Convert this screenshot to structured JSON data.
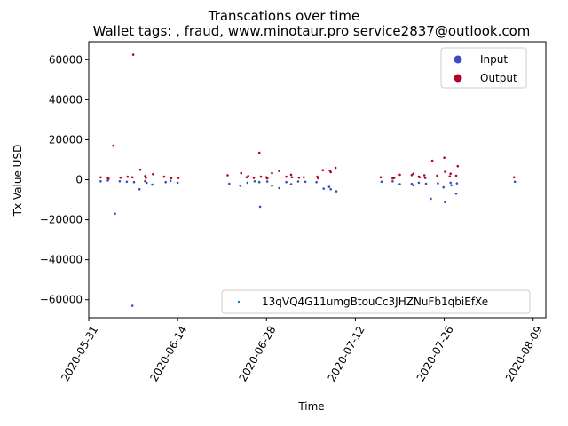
{
  "chart_data": {
    "type": "scatter",
    "title": "Transcations over time",
    "subtitle": "Wallet tags: , fraud, www.minotaur.pro service2837@outlook.com",
    "xlabel": "Time",
    "ylabel": "Tx Value USD",
    "x_ticks": [
      "2020-05-31",
      "2020-06-14",
      "2020-06-28",
      "2020-07-12",
      "2020-07-26",
      "2020-08-09"
    ],
    "y_ticks": [
      -60000,
      -40000,
      -20000,
      0,
      20000,
      40000,
      60000
    ],
    "y_tick_labels": [
      "−60000",
      "−40000",
      "−20000",
      "0",
      "20000",
      "40000",
      "60000"
    ],
    "xlim": [
      "2020-05-31",
      "2020-08-10"
    ],
    "ylim": [
      -69000,
      69000
    ],
    "grid": false,
    "legend_top": {
      "placement": "top-right",
      "entries": [
        {
          "label": "Input",
          "color": "#3b4cc0"
        },
        {
          "label": "Output",
          "color": "#b40426"
        }
      ]
    },
    "legend_bottom": {
      "placement": "bottom-right",
      "entries": [
        {
          "label": "13qVQ4G11umgBtouCc3JHZNuFb1qbiEfXe",
          "color": "#1f77b4"
        }
      ]
    },
    "series": [
      {
        "name": "Output",
        "color": "#b40426",
        "points": [
          [
            "2020-06-02",
            1200
          ],
          [
            "2020-06-03",
            900
          ],
          [
            "2020-06-03",
            500
          ],
          [
            "2020-06-04",
            17000
          ],
          [
            "2020-06-05",
            1000
          ],
          [
            "2020-06-06",
            1500
          ],
          [
            "2020-06-07",
            1200
          ],
          [
            "2020-06-07",
            62500
          ],
          [
            "2020-06-08",
            5000
          ],
          [
            "2020-06-09",
            1800
          ],
          [
            "2020-06-09",
            900
          ],
          [
            "2020-06-10",
            2800
          ],
          [
            "2020-06-12",
            1500
          ],
          [
            "2020-06-13",
            700
          ],
          [
            "2020-06-14",
            900
          ],
          [
            "2020-06-22",
            2200
          ],
          [
            "2020-06-24",
            3300
          ],
          [
            "2020-06-25",
            1800
          ],
          [
            "2020-06-25",
            1200
          ],
          [
            "2020-06-26",
            900
          ],
          [
            "2020-06-27",
            1500
          ],
          [
            "2020-06-27",
            13500
          ],
          [
            "2020-06-28",
            1200
          ],
          [
            "2020-06-28",
            600
          ],
          [
            "2020-06-29",
            3300
          ],
          [
            "2020-06-30",
            4400
          ],
          [
            "2020-07-01",
            1500
          ],
          [
            "2020-07-02",
            2500
          ],
          [
            "2020-07-02",
            1200
          ],
          [
            "2020-07-03",
            1000
          ],
          [
            "2020-07-04",
            1200
          ],
          [
            "2020-07-06",
            1500
          ],
          [
            "2020-07-06",
            700
          ],
          [
            "2020-07-07",
            4800
          ],
          [
            "2020-07-08",
            4500
          ],
          [
            "2020-07-08",
            3800
          ],
          [
            "2020-07-09",
            6000
          ],
          [
            "2020-07-16",
            1200
          ],
          [
            "2020-07-18",
            900
          ],
          [
            "2020-07-18",
            600
          ],
          [
            "2020-07-19",
            2500
          ],
          [
            "2020-07-21",
            3000
          ],
          [
            "2020-07-21",
            2300
          ],
          [
            "2020-07-22",
            1500
          ],
          [
            "2020-07-22",
            1200
          ],
          [
            "2020-07-23",
            2200
          ],
          [
            "2020-07-23",
            900
          ],
          [
            "2020-07-24",
            9500
          ],
          [
            "2020-07-25",
            2000
          ],
          [
            "2020-07-26",
            11000
          ],
          [
            "2020-07-26",
            4000
          ],
          [
            "2020-07-27",
            1700
          ],
          [
            "2020-07-27",
            3000
          ],
          [
            "2020-07-28",
            6800
          ],
          [
            "2020-07-28",
            2000
          ],
          [
            "2020-08-06",
            1200
          ]
        ]
      },
      {
        "name": "Input",
        "color": "#3b4cc0",
        "points": [
          [
            "2020-06-02",
            -800
          ],
          [
            "2020-06-03",
            -400
          ],
          [
            "2020-06-04",
            -17000
          ],
          [
            "2020-06-05",
            -800
          ],
          [
            "2020-06-06",
            -1000
          ],
          [
            "2020-06-07",
            -1200
          ],
          [
            "2020-06-07",
            -63000
          ],
          [
            "2020-06-08",
            -4800
          ],
          [
            "2020-06-09",
            -1500
          ],
          [
            "2020-06-09",
            -700
          ],
          [
            "2020-06-10",
            -2500
          ],
          [
            "2020-06-12",
            -1200
          ],
          [
            "2020-06-13",
            -600
          ],
          [
            "2020-06-14",
            -1500
          ],
          [
            "2020-06-22",
            -2000
          ],
          [
            "2020-06-24",
            -3000
          ],
          [
            "2020-06-25",
            -1500
          ],
          [
            "2020-06-26",
            -800
          ],
          [
            "2020-06-27",
            -1200
          ],
          [
            "2020-06-27",
            -13500
          ],
          [
            "2020-06-28",
            -900
          ],
          [
            "2020-06-29",
            -3000
          ],
          [
            "2020-06-30",
            -4200
          ],
          [
            "2020-07-01",
            -1200
          ],
          [
            "2020-07-02",
            -2200
          ],
          [
            "2020-07-03",
            -900
          ],
          [
            "2020-07-04",
            -1000
          ],
          [
            "2020-07-06",
            -1200
          ],
          [
            "2020-07-07",
            -4500
          ],
          [
            "2020-07-08",
            -4800
          ],
          [
            "2020-07-08",
            -3600
          ],
          [
            "2020-07-09",
            -5800
          ],
          [
            "2020-07-16",
            -1000
          ],
          [
            "2020-07-18",
            -800
          ],
          [
            "2020-07-19",
            -2200
          ],
          [
            "2020-07-21",
            -2800
          ],
          [
            "2020-07-21",
            -2100
          ],
          [
            "2020-07-22",
            -1500
          ],
          [
            "2020-07-23",
            -2000
          ],
          [
            "2020-07-24",
            -9500
          ],
          [
            "2020-07-25",
            -1800
          ],
          [
            "2020-07-26",
            -11200
          ],
          [
            "2020-07-26",
            -3800
          ],
          [
            "2020-07-27",
            -1500
          ],
          [
            "2020-07-27",
            -2800
          ],
          [
            "2020-07-28",
            -7000
          ],
          [
            "2020-07-28",
            -1800
          ],
          [
            "2020-08-06",
            -1000
          ]
        ]
      }
    ]
  }
}
